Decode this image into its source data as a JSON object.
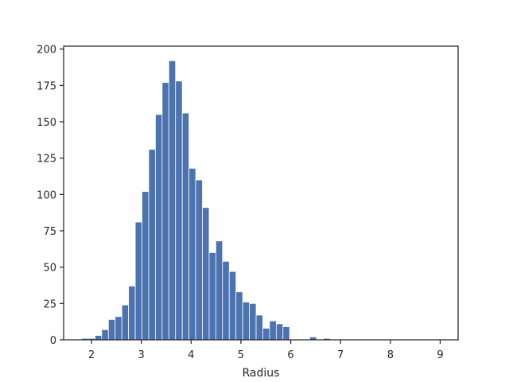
{
  "chart_data": {
    "type": "bar",
    "title": "",
    "xlabel": "Radius",
    "ylabel": "",
    "xlim": [
      1.44,
      9.36
    ],
    "ylim": [
      0,
      202
    ],
    "xticks": [
      2,
      3,
      4,
      5,
      6,
      7,
      8,
      9
    ],
    "yticks": [
      0,
      25,
      50,
      75,
      100,
      125,
      150,
      175,
      200
    ],
    "grid": false,
    "bar_color": "#4c72b0",
    "bin_start": 1.8,
    "bin_width": 0.1348,
    "values": [
      1,
      1,
      3,
      7,
      14,
      16,
      24,
      37,
      81,
      102,
      131,
      155,
      177,
      192,
      178,
      156,
      118,
      110,
      91,
      60,
      68,
      54,
      47,
      33,
      26,
      25,
      17,
      8,
      13,
      11,
      9,
      0,
      0,
      0,
      2,
      0,
      1,
      0,
      0,
      0,
      0,
      0,
      0,
      0,
      0,
      0,
      0,
      0,
      0,
      0,
      0,
      0,
      0,
      0
    ]
  }
}
